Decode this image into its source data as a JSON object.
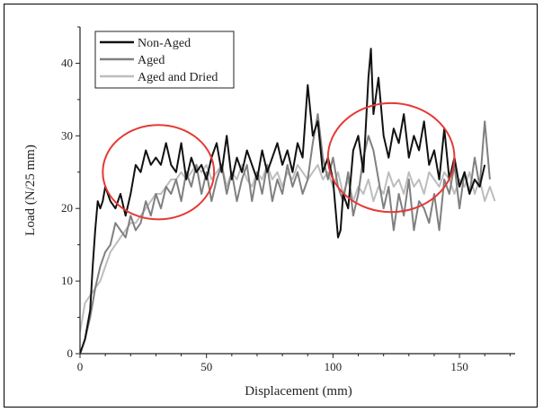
{
  "chart_data": {
    "type": "line",
    "xlabel": "Displacement (mm)",
    "ylabel": "Load (N/25 mm)",
    "xlim": [
      0,
      172
    ],
    "ylim": [
      0,
      45
    ],
    "xticks": [
      0,
      50,
      100,
      150
    ],
    "yticks": [
      0,
      10,
      20,
      30,
      40
    ],
    "legend_position": "top-left",
    "series": [
      {
        "name": "Non-Aged",
        "color": "#111111",
        "x": [
          0,
          2,
          4,
          5,
          6,
          7,
          8,
          9,
          10,
          12,
          14,
          16,
          18,
          20,
          22,
          24,
          26,
          28,
          30,
          32,
          34,
          36,
          38,
          40,
          42,
          44,
          46,
          48,
          50,
          52,
          54,
          56,
          58,
          60,
          62,
          64,
          66,
          68,
          70,
          72,
          74,
          76,
          78,
          80,
          82,
          84,
          86,
          88,
          90,
          92,
          94,
          96,
          98,
          100,
          102,
          103,
          104,
          106,
          108,
          110,
          112,
          114,
          115,
          116,
          118,
          120,
          122,
          124,
          126,
          128,
          130,
          132,
          134,
          136,
          138,
          140,
          142,
          144,
          146,
          148,
          150,
          152,
          154,
          156,
          158,
          160
        ],
        "y": [
          0,
          2,
          6,
          12,
          17,
          21,
          20,
          21,
          23,
          21,
          20,
          22,
          19,
          22,
          26,
          25,
          28,
          26,
          27,
          26,
          29,
          26,
          25,
          29,
          24,
          27,
          25,
          26,
          24,
          27,
          29,
          25,
          30,
          24,
          27,
          25,
          28,
          26,
          24,
          28,
          25,
          27,
          29,
          26,
          28,
          25,
          29,
          27,
          37,
          30,
          32,
          25,
          27,
          24,
          16,
          17,
          22,
          20,
          28,
          30,
          25,
          38,
          42,
          33,
          38,
          30,
          27,
          31,
          29,
          33,
          27,
          30,
          28,
          32,
          26,
          28,
          24,
          31,
          24,
          27,
          23,
          25,
          22,
          24,
          23,
          26
        ]
      },
      {
        "name": "Aged",
        "color": "#808080",
        "x": [
          0,
          2,
          4,
          6,
          8,
          10,
          12,
          14,
          16,
          18,
          20,
          22,
          24,
          26,
          28,
          30,
          32,
          34,
          36,
          38,
          40,
          42,
          44,
          46,
          48,
          50,
          52,
          54,
          56,
          58,
          60,
          62,
          64,
          66,
          68,
          70,
          72,
          74,
          76,
          78,
          80,
          82,
          84,
          86,
          88,
          90,
          92,
          94,
          96,
          98,
          100,
          102,
          104,
          106,
          108,
          110,
          112,
          114,
          116,
          118,
          120,
          122,
          124,
          126,
          128,
          130,
          132,
          134,
          136,
          138,
          140,
          142,
          144,
          146,
          148,
          150,
          152,
          154,
          156,
          158,
          160,
          162
        ],
        "y": [
          0,
          2,
          5,
          9,
          12,
          14,
          15,
          18,
          17,
          16,
          19,
          17,
          18,
          21,
          19,
          22,
          20,
          23,
          22,
          24,
          21,
          25,
          23,
          26,
          22,
          25,
          21,
          24,
          26,
          22,
          25,
          21,
          24,
          26,
          21,
          25,
          22,
          26,
          21,
          24,
          22,
          26,
          23,
          25,
          22,
          24,
          29,
          33,
          27,
          24,
          27,
          23,
          21,
          25,
          19,
          22,
          27,
          30,
          28,
          24,
          20,
          23,
          17,
          22,
          19,
          24,
          17,
          21,
          20,
          18,
          22,
          17,
          24,
          22,
          26,
          20,
          25,
          22,
          27,
          23,
          32,
          24
        ]
      },
      {
        "name": "Aged and Dried",
        "color": "#bdbdbd",
        "x": [
          0,
          2,
          4,
          6,
          8,
          10,
          12,
          14,
          16,
          18,
          20,
          22,
          24,
          26,
          28,
          30,
          32,
          34,
          36,
          38,
          40,
          42,
          44,
          46,
          48,
          50,
          52,
          54,
          56,
          58,
          60,
          62,
          64,
          66,
          68,
          70,
          72,
          74,
          76,
          78,
          80,
          82,
          84,
          86,
          88,
          90,
          92,
          94,
          96,
          98,
          100,
          102,
          104,
          106,
          108,
          110,
          112,
          114,
          116,
          118,
          120,
          122,
          124,
          126,
          128,
          130,
          132,
          134,
          136,
          138,
          140,
          142,
          144,
          146,
          148,
          150,
          152,
          154,
          156,
          158,
          160,
          162,
          164
        ],
        "y": [
          3,
          7,
          8,
          9,
          10,
          12,
          14,
          15,
          16,
          17,
          18,
          18,
          19,
          20,
          21,
          22,
          22,
          23,
          24,
          24,
          25,
          24,
          25,
          26,
          25,
          26,
          24,
          25,
          26,
          23,
          25,
          24,
          26,
          24,
          23,
          25,
          24,
          26,
          24,
          25,
          23,
          25,
          24,
          26,
          25,
          24,
          25,
          26,
          24,
          25,
          23,
          25,
          22,
          24,
          21,
          23,
          22,
          24,
          21,
          23,
          22,
          25,
          23,
          24,
          22,
          25,
          23,
          24,
          22,
          25,
          24,
          23,
          25,
          24,
          22,
          24,
          23,
          25,
          22,
          24,
          21,
          23,
          21
        ]
      }
    ],
    "annotations": [
      {
        "shape": "ellipse",
        "color": "#e53935",
        "cx": 31,
        "cy": 25,
        "rx": 22,
        "ry": 6.5
      },
      {
        "shape": "ellipse",
        "color": "#e53935",
        "cx": 123,
        "cy": 27,
        "rx": 25,
        "ry": 7.5
      }
    ]
  }
}
